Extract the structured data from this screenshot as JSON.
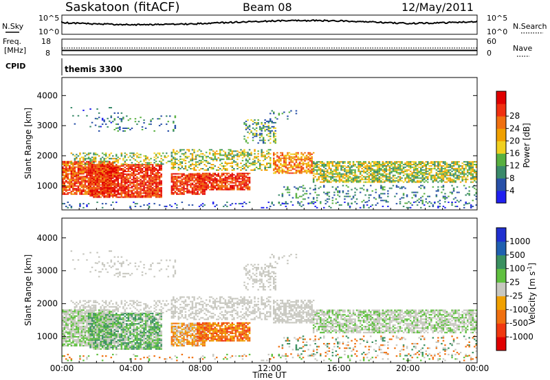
{
  "header": {
    "station": "Saskatoon (fitACF)",
    "beam": "Beam 08",
    "date": "12/May/2011"
  },
  "top_panels": {
    "nsky_label": "N.Sky",
    "nsky_ticks": [
      "10^5",
      "10^0"
    ],
    "nsearch_label": "N.Search",
    "nsearch_ticks": [
      "10^5",
      "10^0"
    ],
    "freq_label_1": "Freq.",
    "freq_label_2": "[MHz]",
    "freq_ticks": [
      "18",
      "8"
    ],
    "nave_label": "Nave",
    "nave_ticks": [
      "60",
      "0"
    ],
    "cpid_label": "CPID",
    "cpid_value": "themis 3300"
  },
  "colors": {
    "power_scale": [
      "#2020f0",
      "#2850a8",
      "#3a8a6a",
      "#58b040",
      "#f0d020",
      "#f0a000",
      "#f07010",
      "#f03010",
      "#e00000"
    ],
    "velocity_scale": [
      "#2030d0",
      "#2060b0",
      "#3a9060",
      "#60c040",
      "#c8c8c0",
      "#f0a000",
      "#f07010",
      "#f03810",
      "#e00000"
    ]
  },
  "chart_data": [
    {
      "type": "heatmap",
      "name": "power",
      "title": "",
      "xlabel": "",
      "ylabel": "Slant Range [km]",
      "xlim": [
        "00:00",
        "00:00"
      ],
      "ylim": [
        200,
        4600
      ],
      "x_ticks": [
        "00:00",
        "04:00",
        "08:00",
        "12:00",
        "16:00",
        "20:00",
        "00:00"
      ],
      "y_ticks": [
        1000,
        2000,
        3000,
        4000
      ],
      "colorbar_label": "Power [dB]",
      "colorbar_ticks": [
        4,
        8,
        12,
        16,
        20,
        24,
        28
      ],
      "grid": false
    },
    {
      "type": "heatmap",
      "name": "velocity",
      "title": "",
      "xlabel": "Time UT",
      "ylabel": "Slant Range [km]",
      "xlim": [
        "00:00",
        "00:00"
      ],
      "ylim": [
        200,
        4600
      ],
      "x_ticks": [
        "00:00",
        "04:00",
        "08:00",
        "12:00",
        "16:00",
        "20:00",
        "00:00"
      ],
      "y_ticks": [
        1000,
        2000,
        3000,
        4000
      ],
      "colorbar_label": "Velocity [m s^-1]",
      "colorbar_ticks": [
        1000,
        500,
        100,
        25,
        -25,
        -100,
        -500,
        -1000
      ],
      "grid": false
    }
  ]
}
